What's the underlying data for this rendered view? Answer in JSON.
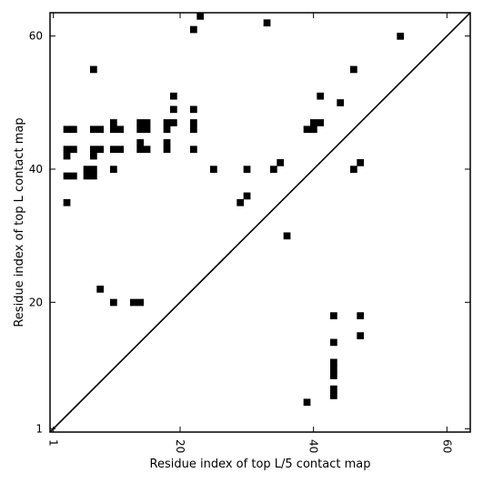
{
  "chart_data": {
    "type": "scatter",
    "xlabel": "Residue index of top L/5 contact map",
    "ylabel": "Residue index of top L contact map",
    "xlim": [
      0.5,
      63.5
    ],
    "ylim": [
      0.5,
      63.5
    ],
    "x_ticks": [
      1,
      20,
      40,
      60
    ],
    "y_ticks": [
      1,
      20,
      40,
      60
    ],
    "x_tick_labels": [
      "1",
      "20",
      "40",
      "60"
    ],
    "y_tick_labels": [
      "1",
      "20",
      "40",
      "60"
    ],
    "diagonal": true,
    "marker_color": "#000000",
    "upper_triangle": [
      [
        23,
        63
      ],
      [
        22,
        61
      ],
      [
        33,
        62
      ],
      [
        53,
        60
      ],
      [
        7,
        55
      ],
      [
        46,
        55
      ],
      [
        19,
        51
      ],
      [
        41,
        51
      ],
      [
        44,
        50
      ],
      [
        19,
        49
      ],
      [
        22,
        49
      ],
      [
        10,
        47
      ],
      [
        14,
        47
      ],
      [
        15,
        47
      ],
      [
        18,
        47
      ],
      [
        19,
        47
      ],
      [
        22,
        47
      ],
      [
        40,
        47
      ],
      [
        41,
        47
      ],
      [
        3,
        46
      ],
      [
        4,
        46
      ],
      [
        7,
        46
      ],
      [
        8,
        46
      ],
      [
        10,
        46
      ],
      [
        11,
        46
      ],
      [
        14,
        46
      ],
      [
        15,
        46
      ],
      [
        18,
        46
      ],
      [
        22,
        46
      ],
      [
        39,
        46
      ],
      [
        40,
        46
      ],
      [
        14,
        44
      ],
      [
        18,
        44
      ],
      [
        3,
        43
      ],
      [
        4,
        43
      ],
      [
        7,
        43
      ],
      [
        8,
        43
      ],
      [
        10,
        43
      ],
      [
        11,
        43
      ],
      [
        14,
        43
      ],
      [
        15,
        43
      ],
      [
        18,
        43
      ],
      [
        22,
        43
      ],
      [
        3,
        42
      ],
      [
        7,
        42
      ],
      [
        35,
        41
      ],
      [
        47,
        41
      ],
      [
        6,
        40
      ],
      [
        7,
        40
      ],
      [
        10,
        40
      ],
      [
        25,
        40
      ],
      [
        30,
        40
      ],
      [
        34,
        40
      ],
      [
        46,
        40
      ],
      [
        3,
        39
      ],
      [
        4,
        39
      ],
      [
        6,
        39
      ],
      [
        7,
        39
      ],
      [
        30,
        36
      ],
      [
        3,
        35
      ],
      [
        29,
        35
      ],
      [
        36,
        30
      ]
    ],
    "lower_triangle": [
      [
        8,
        22
      ],
      [
        10,
        20
      ],
      [
        13,
        20
      ],
      [
        14,
        20
      ],
      [
        43,
        18
      ],
      [
        47,
        18
      ],
      [
        47,
        15
      ],
      [
        43,
        14
      ],
      [
        43,
        11
      ],
      [
        43,
        10
      ],
      [
        43,
        9
      ],
      [
        43,
        7
      ],
      [
        43,
        6
      ],
      [
        39,
        5
      ]
    ]
  }
}
